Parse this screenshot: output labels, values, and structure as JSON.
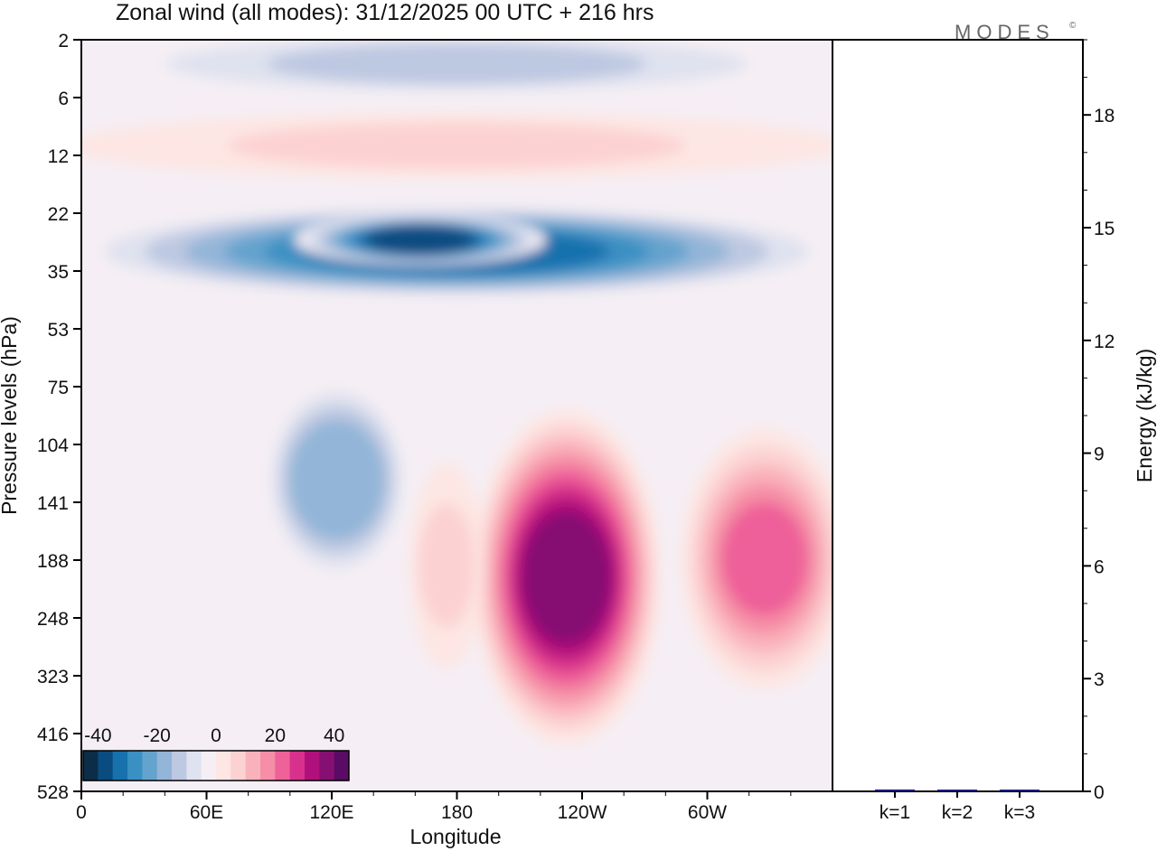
{
  "chart_data": {
    "type": "heatmap",
    "title": "Zonal wind (all modes):  31/12/2025  00 UTC  + 216 hrs",
    "logo": "MODES",
    "logo_mark": "©",
    "xlabel": "Longitude",
    "ylabel": "Pressure levels (hPa)",
    "pressure_levels": [
      2,
      6,
      12,
      22,
      35,
      53,
      75,
      104,
      141,
      188,
      248,
      323,
      416,
      528
    ],
    "lon_ticks": [
      {
        "deg": 0,
        "label": "0"
      },
      {
        "deg": 60,
        "label": "60E"
      },
      {
        "deg": 120,
        "label": "120E"
      },
      {
        "deg": 180,
        "label": "180"
      },
      {
        "deg": 240,
        "label": "120W"
      },
      {
        "deg": 300,
        "label": "60W"
      }
    ],
    "lon_range": [
      0,
      360
    ],
    "colorbar": {
      "labels": [
        {
          "value": -40,
          "label": "-40"
        },
        {
          "value": -20,
          "label": "-20"
        },
        {
          "value": 0,
          "label": "0"
        },
        {
          "value": 20,
          "label": "20"
        },
        {
          "value": 40,
          "label": "40"
        }
      ],
      "range": [
        -45,
        45
      ],
      "step": 5,
      "colors": [
        "#0c2d48",
        "#0a4c80",
        "#1671ad",
        "#3a8fc3",
        "#64a3cd",
        "#93b5d8",
        "#bdc8e1",
        "#dfe2ef",
        "#f5eef4",
        "#fde6e3",
        "#fcd1d1",
        "#f9b2bb",
        "#f58ea6",
        "#ee6199",
        "#d7318b",
        "#b0107b",
        "#861072",
        "#5a0b65"
      ]
    },
    "wind_features": [
      {
        "name": "upper easterly band",
        "lon_range": [
          0,
          360
        ],
        "p_range": [
          22,
          40
        ],
        "peak_value": -32
      },
      {
        "name": "stratospheric easterlies",
        "lon_range": [
          0,
          360
        ],
        "p_range": [
          2,
          5
        ],
        "peak_value": -12
      },
      {
        "name": "weak westerly band",
        "lon_range": [
          0,
          360
        ],
        "p_range": [
          8,
          14
        ],
        "peak_value": 5
      },
      {
        "name": "easterly core",
        "lon_range": [
          110,
          215
        ],
        "p_range": [
          24,
          31
        ],
        "peak_value": -38
      },
      {
        "name": "tropospheric easterly lobe",
        "lon_range": [
          95,
          150
        ],
        "p_range": [
          75,
          200
        ],
        "peak_value": -20
      },
      {
        "name": "Pacific westerly jet",
        "lon_range": [
          195,
          270
        ],
        "p_range": [
          90,
          420
        ],
        "peak_value": 37
      },
      {
        "name": "Atlantic westerly jet",
        "lon_range": [
          295,
          360
        ],
        "p_range": [
          100,
          330
        ],
        "peak_value": 22
      },
      {
        "name": "dateline westerlies",
        "lon_range": [
          165,
          185
        ],
        "p_range": [
          120,
          300
        ],
        "peak_value": 8
      }
    ],
    "energy_axis": {
      "label": "Energy (kJ/kg)",
      "ticks": [
        0,
        3,
        6,
        9,
        12,
        15,
        18
      ],
      "range": [
        0,
        20
      ]
    },
    "energy_bars": [
      {
        "label": "k=1",
        "value": 0.05,
        "color": "#1a1a7a"
      },
      {
        "label": "k=2",
        "value": 0.02,
        "color": "#1a1a7a"
      },
      {
        "label": "k=3",
        "value": 0.02,
        "color": "#1a1a7a"
      }
    ]
  }
}
